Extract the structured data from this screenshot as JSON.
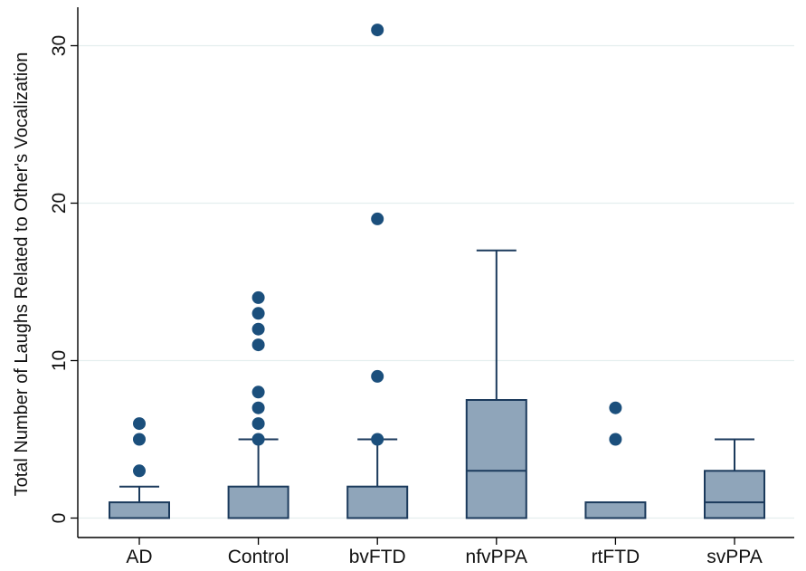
{
  "chart_data": {
    "type": "box",
    "ylabel": "Total Number of Laughs Related to Other's Vocalization",
    "xlabel": "",
    "ylim": [
      0,
      32
    ],
    "yticks": [
      0,
      10,
      20,
      30
    ],
    "grid": true,
    "categories": [
      "AD",
      "Control",
      "bvFTD",
      "nfvPPA",
      "rtFTD",
      "svPPA"
    ],
    "boxes": [
      {
        "category": "AD",
        "whisker_low": 0,
        "q1": 0,
        "median": 0,
        "q3": 1,
        "whisker_high": 2,
        "outliers": [
          3,
          5,
          6
        ]
      },
      {
        "category": "Control",
        "whisker_low": 0,
        "q1": 0,
        "median": 0,
        "q3": 2,
        "whisker_high": 5,
        "outliers": [
          5,
          6,
          7,
          8,
          11,
          12,
          13,
          14
        ]
      },
      {
        "category": "bvFTD",
        "whisker_low": 0,
        "q1": 0,
        "median": 0,
        "q3": 2,
        "whisker_high": 5,
        "outliers": [
          5,
          9,
          19,
          31
        ]
      },
      {
        "category": "nfvPPA",
        "whisker_low": 0,
        "q1": 0,
        "median": 3,
        "q3": 7.5,
        "whisker_high": 17,
        "outliers": []
      },
      {
        "category": "rtFTD",
        "whisker_low": 0,
        "q1": 0,
        "median": 0,
        "q3": 1,
        "whisker_high": 1,
        "outliers": [
          5,
          7
        ]
      },
      {
        "category": "svPPA",
        "whisker_low": 0,
        "q1": 0,
        "median": 1,
        "q3": 3,
        "whisker_high": 5,
        "outliers": []
      }
    ],
    "colors": {
      "box_fill": "#8fa5ba",
      "box_stroke": "#1b3a5c",
      "outlier": "#1b4f7c",
      "grid": "#e4eeee",
      "axis": "#000000"
    }
  }
}
